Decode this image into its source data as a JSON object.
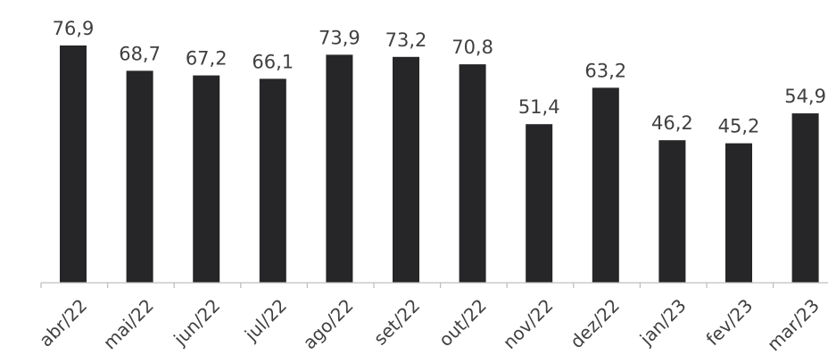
{
  "chart_data": {
    "type": "bar",
    "categories": [
      "abr/22",
      "mai/22",
      "jun/22",
      "jul/22",
      "ago/22",
      "set/22",
      "out/22",
      "nov/22",
      "dez/22",
      "jan/23",
      "fev/23",
      "mar/23"
    ],
    "values": [
      76.9,
      68.7,
      67.2,
      66.1,
      73.9,
      73.2,
      70.8,
      51.4,
      63.2,
      46.2,
      45.2,
      54.9
    ],
    "value_labels": [
      "76,9",
      "68,7",
      "67,2",
      "66,1",
      "73,9",
      "73,2",
      "70,8",
      "51,4",
      "63,2",
      "46,2",
      "45,2",
      "54,9"
    ],
    "title": "",
    "xlabel": "",
    "ylabel": "",
    "ylim": [
      0,
      76.9
    ],
    "grid": false,
    "legend": "none",
    "bar_color": "#262628"
  }
}
